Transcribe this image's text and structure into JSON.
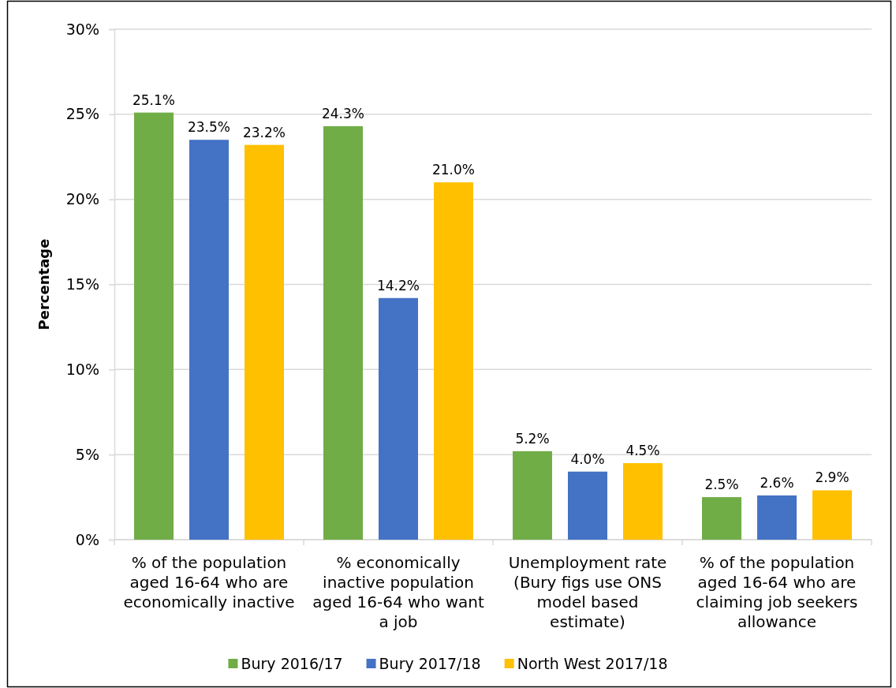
{
  "chart_data": {
    "type": "bar",
    "ylabel": "Percentage",
    "categories": [
      "% of the population aged 16-64 who are economically inactive",
      "% economically inactive population aged 16-64 who want a job",
      "Unemployment rate (Bury figs use ONS model based estimate)",
      "% of the population aged 16-64 who are claiming job seekers allowance"
    ],
    "series": [
      {
        "name": "Bury 2016/17",
        "color": "#70ad47",
        "values": [
          25.1,
          24.3,
          5.2,
          2.5
        ],
        "value_labels": [
          "25.1%",
          "24.3%",
          "5.2%",
          "2.5%"
        ]
      },
      {
        "name": "Bury 2017/18",
        "color": "#4472c4",
        "values": [
          23.5,
          14.2,
          4.0,
          2.6
        ],
        "value_labels": [
          "23.5%",
          "14.2%",
          "4.0%",
          "2.6%"
        ]
      },
      {
        "name": "North West 2017/18",
        "color": "#ffc000",
        "values": [
          23.2,
          21.0,
          4.5,
          2.9
        ],
        "value_labels": [
          "23.2%",
          "21.0%",
          "4.5%",
          "2.9%"
        ]
      }
    ],
    "ylim": [
      0,
      30
    ],
    "yticks": [
      {
        "value": 0,
        "label": "0%"
      },
      {
        "value": 5,
        "label": "5%"
      },
      {
        "value": 10,
        "label": "10%"
      },
      {
        "value": 15,
        "label": "15%"
      },
      {
        "value": 20,
        "label": "20%"
      },
      {
        "value": 25,
        "label": "25%"
      },
      {
        "value": 30,
        "label": "30%"
      }
    ],
    "grid": "y",
    "legend": "bottom"
  }
}
